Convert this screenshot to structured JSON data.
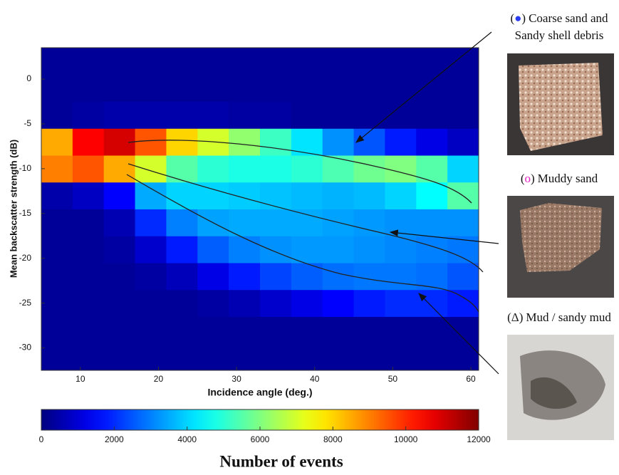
{
  "chart_data": {
    "type": "heatmap",
    "xlabel": "Incidence angle (deg.)",
    "ylabel": "Mean backscatter strength (dB)",
    "colorbar_label": "Number of events",
    "colormap": "jet",
    "xlim": [
      5,
      61
    ],
    "ylim": [
      -32.5,
      3.5
    ],
    "xticks": [
      10,
      20,
      30,
      40,
      50,
      60
    ],
    "yticks": [
      -30,
      -25,
      -20,
      -15,
      -10,
      -5,
      0
    ],
    "clim": [
      0,
      12000
    ],
    "cticks": [
      0,
      2000,
      4000,
      6000,
      8000,
      10000,
      12000
    ],
    "xbins": [
      5,
      9,
      13,
      17,
      21,
      25,
      29,
      33,
      37,
      41,
      45,
      49,
      53,
      57,
      61
    ],
    "ybins": [
      -32.5,
      -29.5,
      -26.5,
      -23.5,
      -20.5,
      -17.5,
      -14.5,
      -11.5,
      -8.5,
      -5.5,
      -2.5,
      0.5,
      3.5
    ],
    "z": [
      [
        300,
        300,
        300,
        300,
        300,
        300,
        300,
        300,
        300,
        300,
        300,
        300,
        300,
        300
      ],
      [
        300,
        300,
        300,
        300,
        300,
        300,
        300,
        300,
        300,
        300,
        300,
        300,
        300,
        300
      ],
      [
        300,
        300,
        300,
        300,
        300,
        400,
        600,
        900,
        1200,
        1500,
        1800,
        2000,
        2000,
        1800
      ],
      [
        300,
        300,
        300,
        400,
        700,
        1200,
        1800,
        2300,
        2600,
        2800,
        2900,
        2900,
        2800,
        2500
      ],
      [
        300,
        300,
        400,
        900,
        1800,
        2600,
        3000,
        3200,
        3300,
        3300,
        3200,
        3100,
        3000,
        2900
      ],
      [
        300,
        300,
        600,
        2000,
        3000,
        3400,
        3500,
        3500,
        3500,
        3400,
        3300,
        3200,
        3200,
        3200
      ],
      [
        500,
        800,
        1500,
        3500,
        4000,
        4000,
        3900,
        3800,
        3700,
        3600,
        3700,
        4000,
        4500,
        5500
      ],
      [
        9000,
        9500,
        8500,
        7000,
        5500,
        5000,
        4800,
        4800,
        5000,
        5400,
        5800,
        6000,
        5500,
        4000
      ],
      [
        8500,
        10500,
        11000,
        9500,
        8000,
        7000,
        6200,
        5200,
        4200,
        3200,
        2500,
        1800,
        1200,
        800
      ],
      [
        300,
        400,
        500,
        500,
        500,
        500,
        400,
        400,
        300,
        300,
        300,
        300,
        300,
        300
      ],
      [
        300,
        300,
        300,
        300,
        300,
        300,
        300,
        300,
        300,
        300,
        300,
        300,
        300,
        300
      ],
      [
        300,
        300,
        300,
        300,
        300,
        300,
        300,
        300,
        300,
        300,
        300,
        300,
        300,
        300
      ]
    ],
    "annotations": [
      {
        "bracket": [
          "(",
          ")"
        ],
        "marker": "●",
        "marker_color": "#2a3cf0",
        "lines": [
          "Coarse sand and",
          "Sandy shell debris"
        ]
      },
      {
        "bracket": [
          "(",
          ")"
        ],
        "marker": "o",
        "marker_color": "#e020c0",
        "lines": [
          "Muddy sand"
        ]
      },
      {
        "bracket": [
          "(",
          ")"
        ],
        "marker": "Δ",
        "marker_color": "#222222",
        "lines": [
          "Mud / sandy mud"
        ]
      }
    ]
  }
}
